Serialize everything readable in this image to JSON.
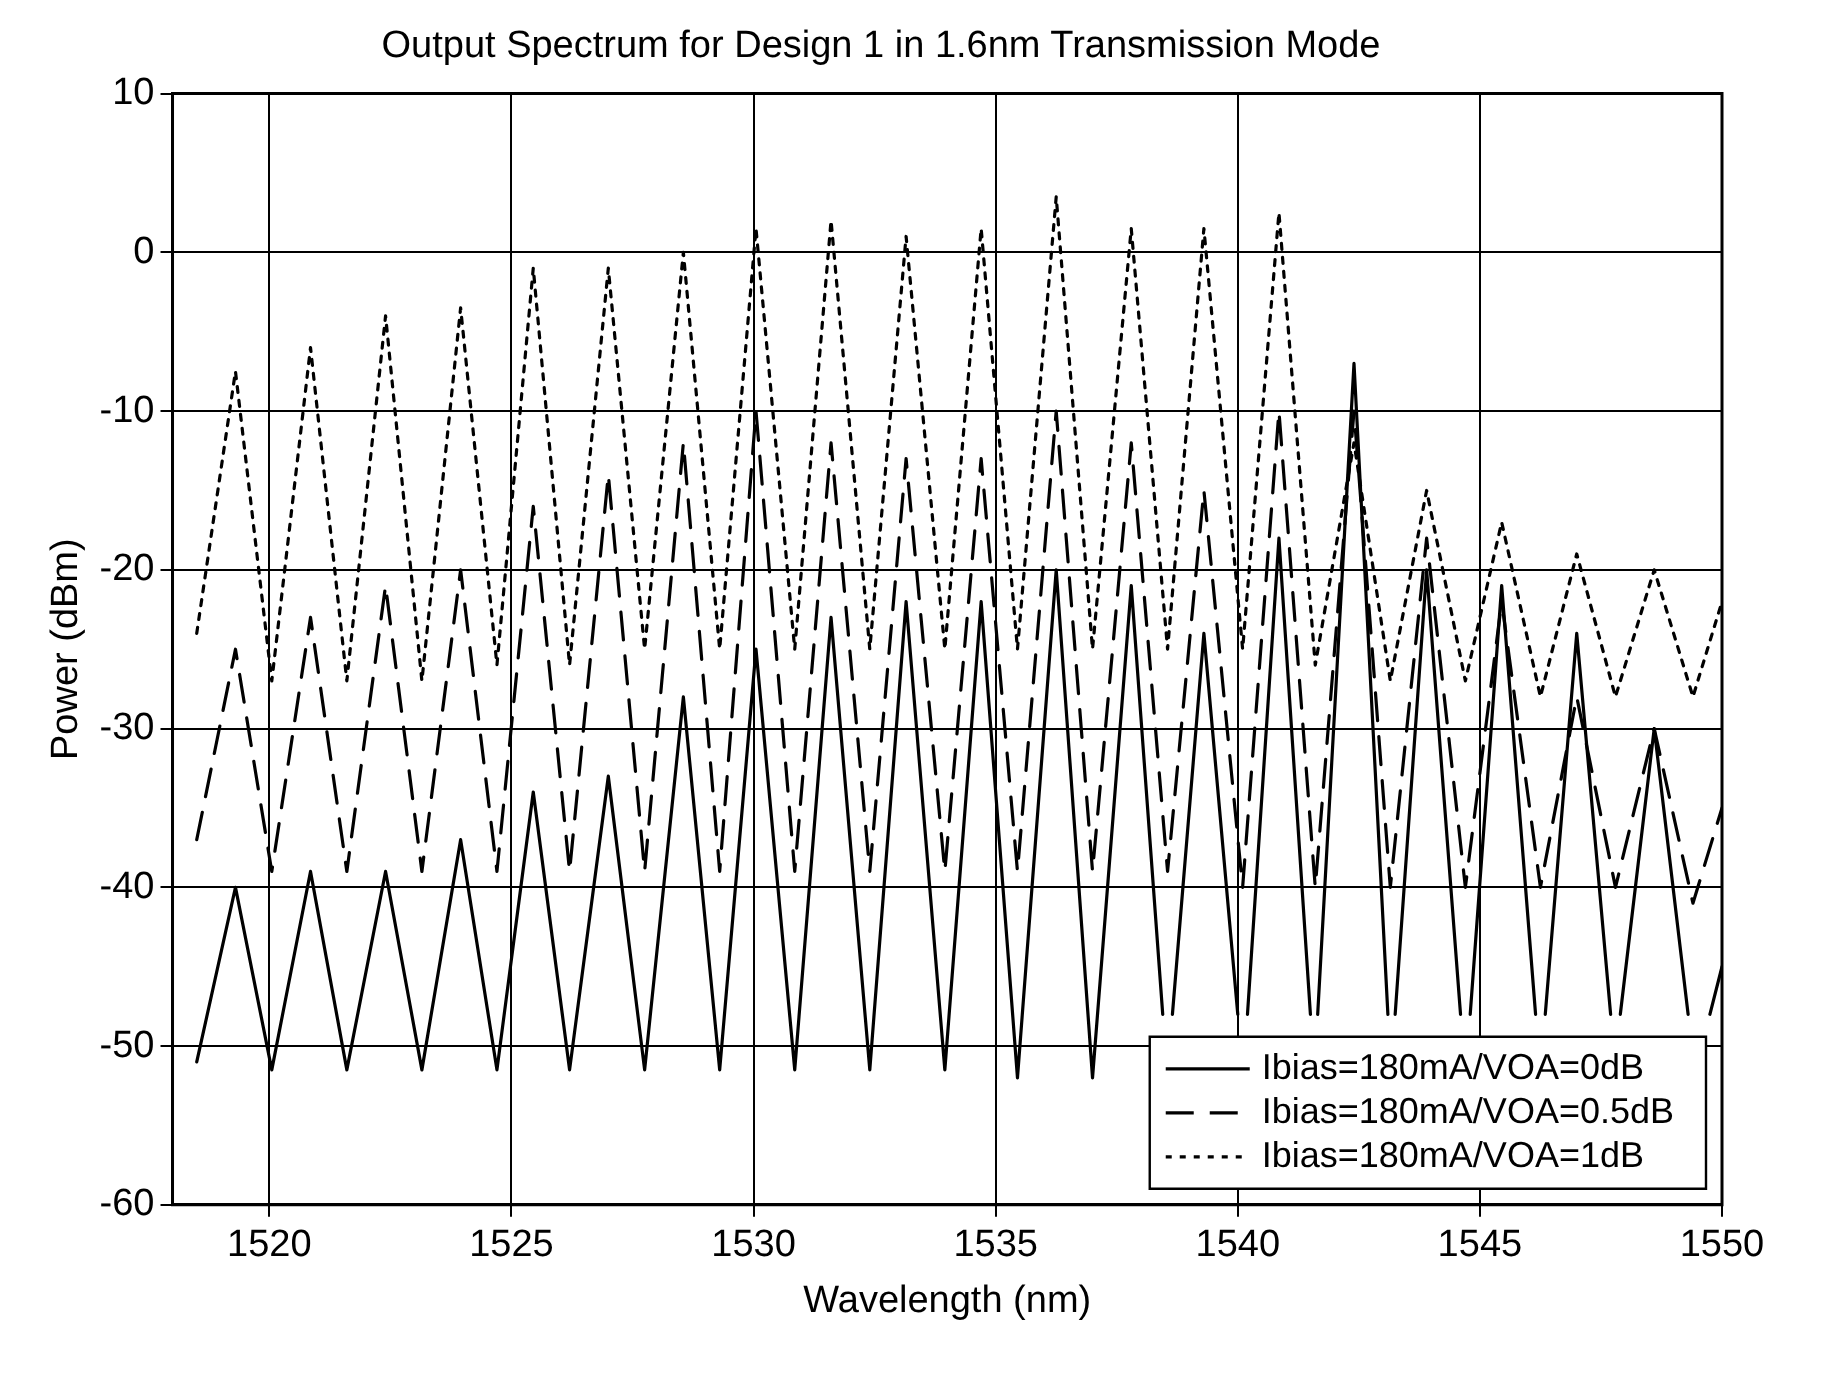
{
  "chart_data": {
    "type": "line",
    "title": "Output Spectrum for Design 1 in 1.6nm Transmission Mode",
    "xlabel": "Wavelength (nm)",
    "ylabel": "Power (dBm)",
    "x": [
      1518.5,
      1519.3,
      1520.05,
      1520.85,
      1521.6,
      1522.4,
      1523.15,
      1523.95,
      1524.7,
      1525.45,
      1526.2,
      1527.0,
      1527.75,
      1528.55,
      1529.3,
      1530.05,
      1530.85,
      1531.6,
      1532.4,
      1533.15,
      1533.95,
      1534.7,
      1535.45,
      1536.25,
      1537.0,
      1537.8,
      1538.55,
      1539.3,
      1540.1,
      1540.85,
      1541.6,
      1542.4,
      1543.15,
      1543.9,
      1544.7,
      1545.45,
      1546.25,
      1547.0,
      1547.8,
      1548.6,
      1549.4,
      1550
    ],
    "series": [
      {
        "name": "Ibias=180mA/VOA=0dB",
        "color": "#000000",
        "line_style": "solid",
        "x": [
          1518.5,
          1519.3,
          1520.05,
          1520.85,
          1521.6,
          1522.4,
          1523.15,
          1523.95,
          1524.7,
          1525.45,
          1526.2,
          1527.0,
          1527.75,
          1528.55,
          1529.3,
          1530.05,
          1530.85,
          1531.6,
          1532.4,
          1533.15,
          1533.95,
          1534.7,
          1535.45,
          1536.25,
          1537.0,
          1537.8,
          1538.45,
          1538.55,
          1538.65,
          1539.3,
          1540.0,
          1540.1,
          1540.2,
          1540.85,
          1541.5,
          1541.6,
          1541.65,
          1542.4,
          1543.1,
          1543.15,
          1543.25,
          1543.9,
          1544.6,
          1544.7,
          1544.8,
          1545.45,
          1546.15,
          1546.25,
          1546.35,
          1547.0,
          1547.7,
          1547.8,
          1547.9,
          1548.6,
          1549.3,
          1549.4,
          1549.75,
          1550
        ],
        "values": [
          -51,
          -40,
          -51.5,
          -39,
          -51.5,
          -39,
          -51.5,
          -37,
          -51.5,
          -34,
          -51.5,
          -33,
          -51.5,
          -28,
          -51.5,
          -25,
          -51.5,
          -23,
          -51.5,
          -22,
          -51.5,
          -22,
          -52,
          -20,
          -52,
          -21,
          -48,
          null,
          -48,
          -24,
          -48,
          null,
          -48,
          -18,
          -48,
          null,
          -48,
          -7,
          -48,
          null,
          -48,
          -20,
          -48,
          null,
          -48,
          -21,
          -48,
          null,
          -48,
          -24,
          -48,
          null,
          -48,
          -30,
          -48,
          null,
          -48,
          -45
        ]
      },
      {
        "name": "Ibias=180mA/VOA=0.5dB",
        "color": "#000000",
        "line_style": "dashed",
        "values": [
          -37,
          -25,
          -39,
          -23,
          -39,
          -21,
          -39,
          -20,
          -39,
          -16,
          -39,
          -14,
          -39,
          -12,
          -39,
          -10,
          -39,
          -12,
          -39,
          -13,
          -39,
          -13,
          -39,
          -10,
          -39,
          -12,
          -39,
          -15,
          -40,
          -10,
          -40,
          -10,
          -40,
          -18,
          -40,
          -22,
          -40,
          -28,
          -40,
          -30,
          -41,
          -35
        ]
      },
      {
        "name": "Ibias=180mA/VOA=1dB",
        "color": "#000000",
        "line_style": "dotted",
        "values": [
          -24,
          -7.5,
          -27,
          -6,
          -27,
          -4,
          -27,
          -3.5,
          -26,
          -1,
          -26,
          -1,
          -25,
          0,
          -25,
          1.5,
          -25,
          2,
          -25,
          1,
          -25,
          1.5,
          -25,
          3.5,
          -25,
          1.5,
          -25,
          1.5,
          -25,
          2.5,
          -26,
          -12,
          -27,
          -15,
          -27,
          -17,
          -28,
          -19,
          -28,
          -20,
          -28,
          -22
        ]
      }
    ],
    "xlim": [
      1518,
      1550
    ],
    "xticks": [
      1520,
      1525,
      1530,
      1535,
      1540,
      1545,
      1550
    ],
    "ylim": [
      -60,
      10
    ],
    "yticks": [
      -60,
      -50,
      -40,
      -30,
      -20,
      -10,
      0,
      10
    ],
    "grid": true,
    "legend": "bottom right",
    "marker": "none"
  }
}
